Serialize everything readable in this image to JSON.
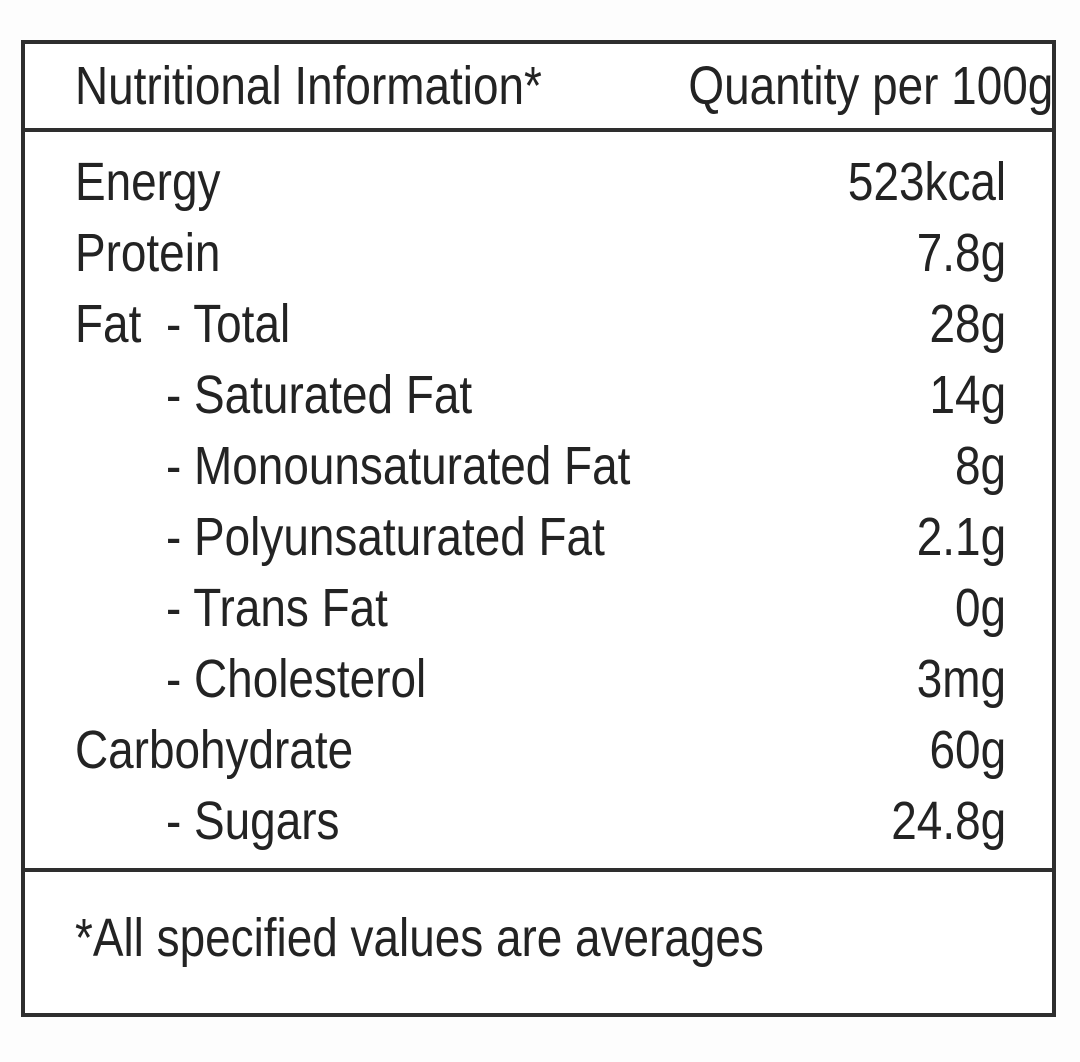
{
  "colors": {
    "text": "#232323",
    "rule": "#2e2e2e",
    "background": "#ffffff"
  },
  "header": {
    "left": "Nutritional Information*",
    "right": "Quantity per 100g"
  },
  "rows": [
    {
      "label": "Energy",
      "sublabel": "",
      "value": "523kcal"
    },
    {
      "label": "Protein",
      "sublabel": "",
      "value": "7.8g"
    },
    {
      "label": "Fat",
      "sublabel": "- Total",
      "value": "28g"
    },
    {
      "label": "",
      "sublabel": "- Saturated Fat",
      "value": "14g"
    },
    {
      "label": "",
      "sublabel": "- Monounsaturated Fat",
      "value": "8g"
    },
    {
      "label": "",
      "sublabel": "- Polyunsaturated Fat",
      "value": "2.1g"
    },
    {
      "label": "",
      "sublabel": "- Trans Fat",
      "value": "0g"
    },
    {
      "label": "",
      "sublabel": "- Cholesterol",
      "value": "3mg"
    },
    {
      "label": "Carbohydrate",
      "sublabel": "",
      "value": "60g"
    },
    {
      "label": "",
      "sublabel": "- Sugars",
      "value": "24.8g"
    }
  ],
  "footnote": "*All specified values are averages"
}
